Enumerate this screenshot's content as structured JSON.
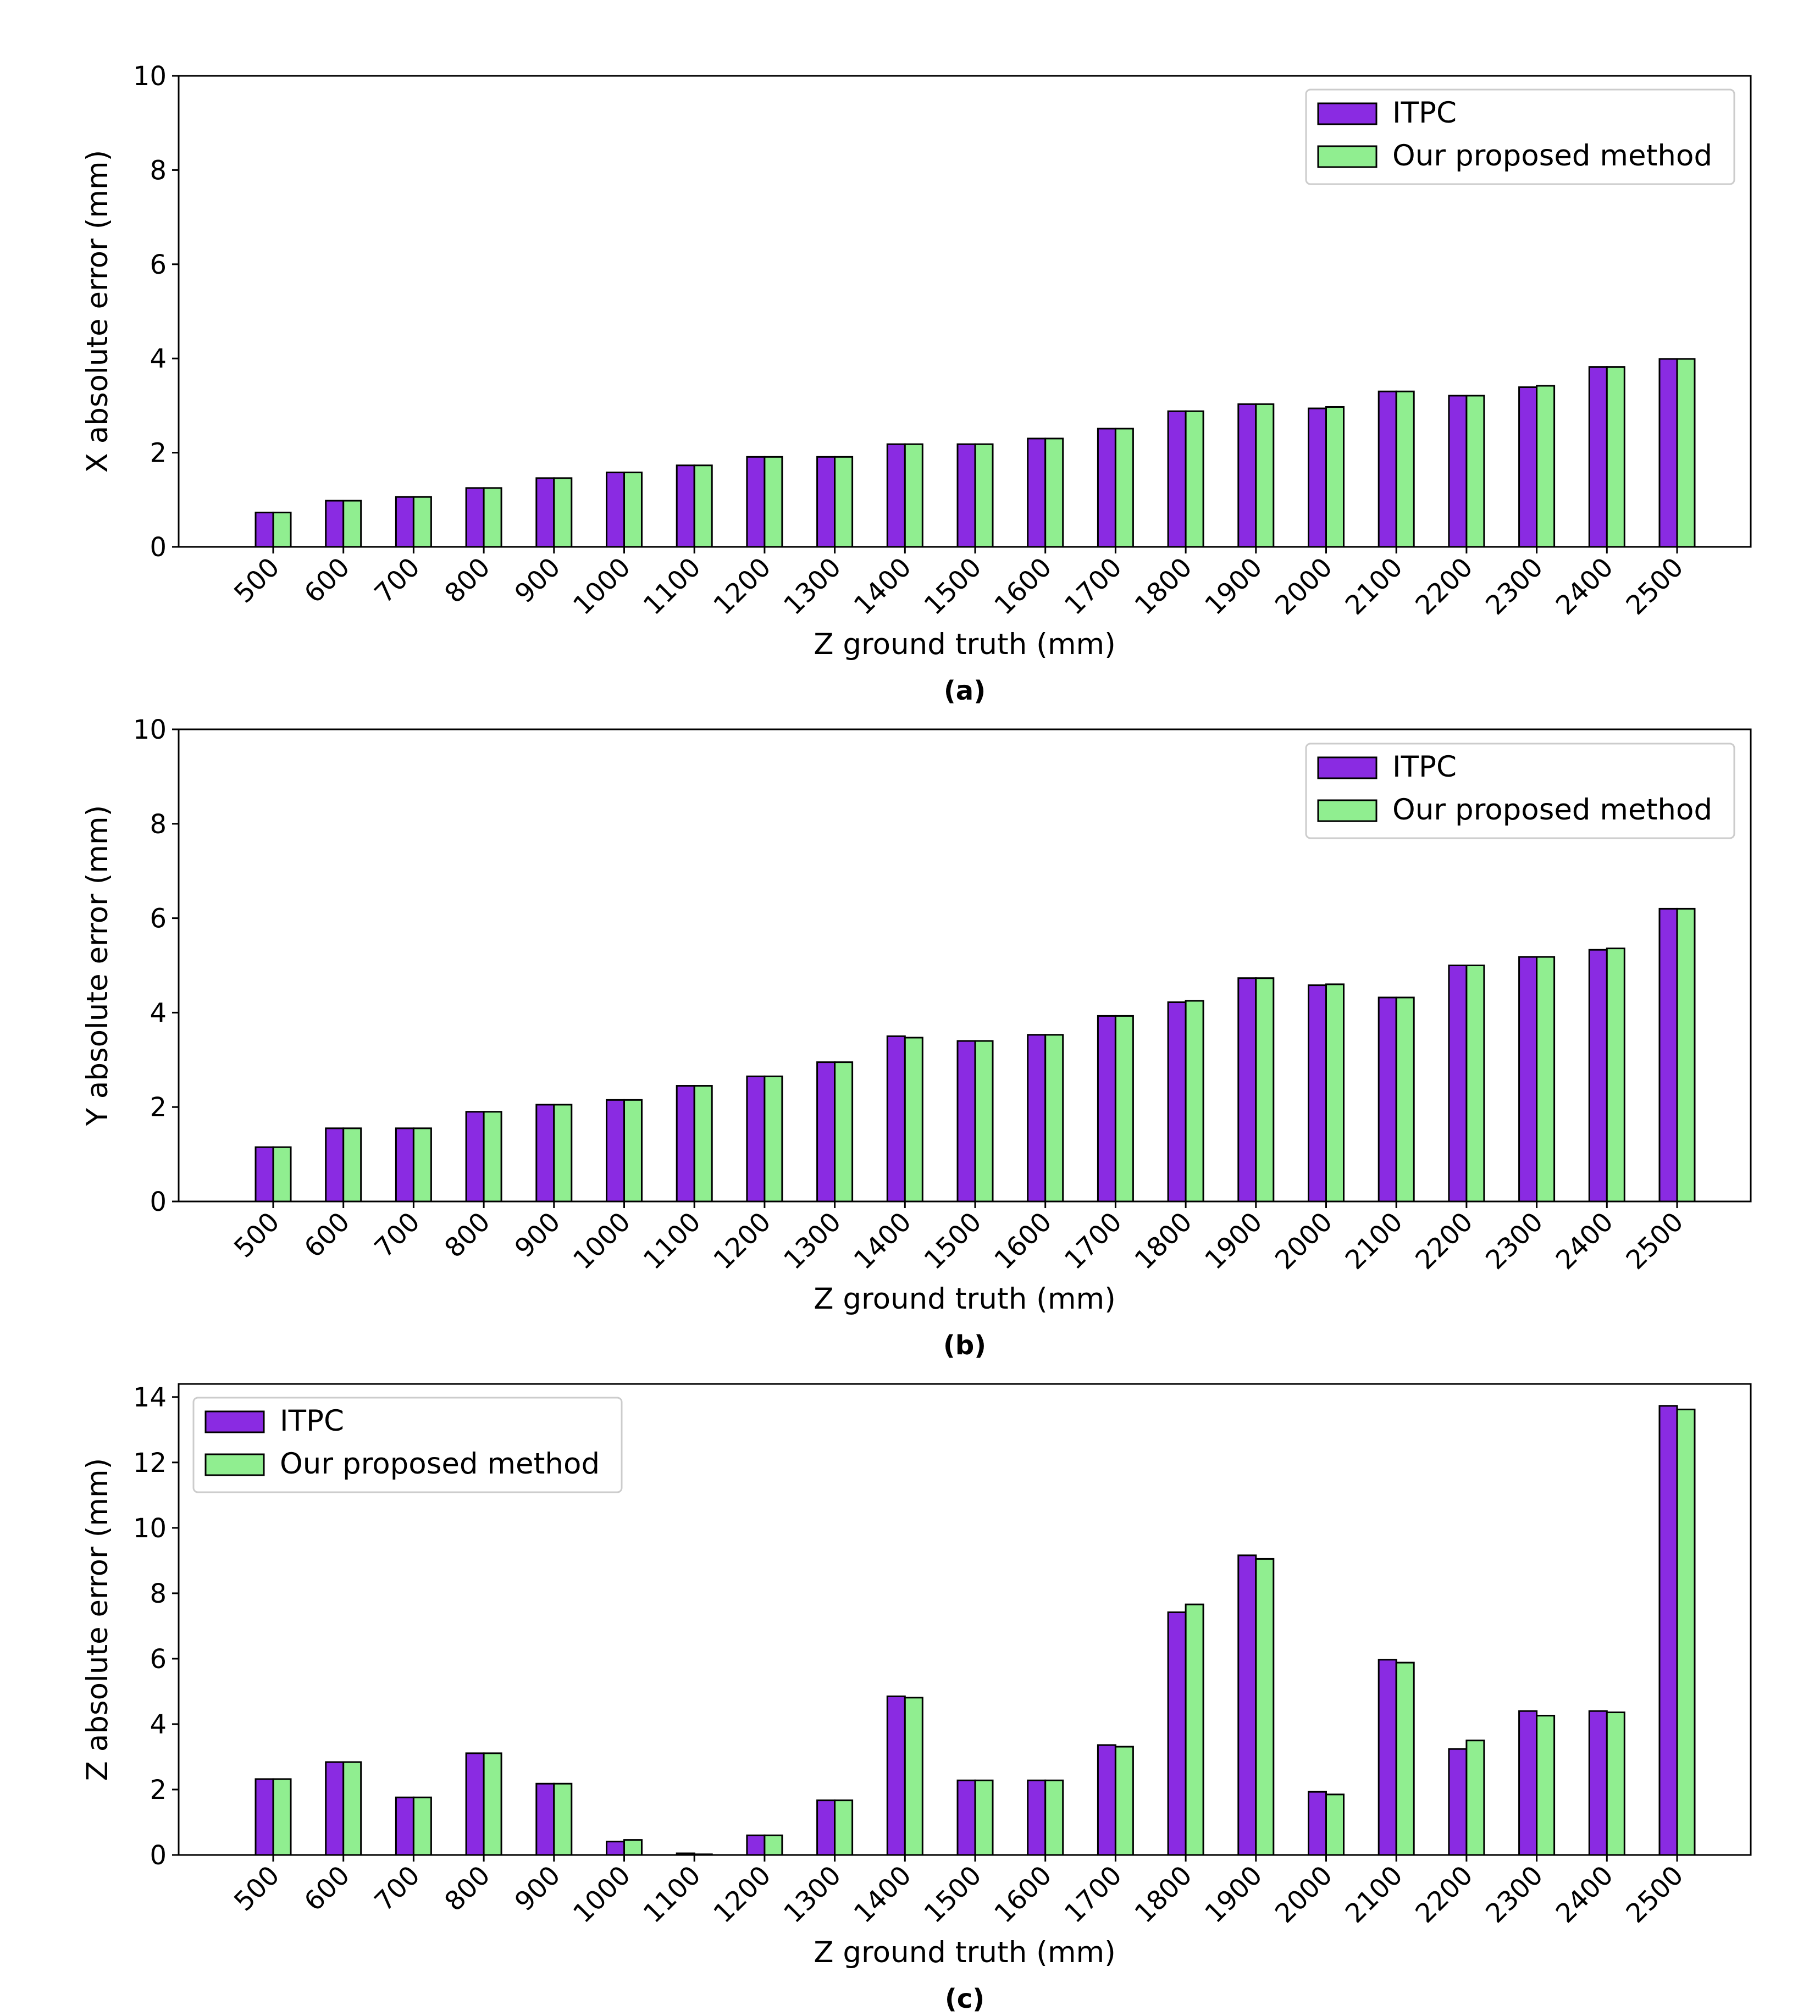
{
  "chart_data": [
    {
      "type": "bar",
      "caption": "(a)",
      "xlabel": "Z ground truth (mm)",
      "ylabel": "X absolute error (mm)",
      "ylim": [
        0,
        10
      ],
      "yticks": [
        0,
        2,
        4,
        6,
        8,
        10
      ],
      "legend_position": "top-right",
      "categories": [
        "500",
        "600",
        "700",
        "800",
        "900",
        "1000",
        "1100",
        "1200",
        "1300",
        "1400",
        "1500",
        "1600",
        "1700",
        "1800",
        "1900",
        "2000",
        "2100",
        "2200",
        "2300",
        "2400",
        "2500"
      ],
      "series": [
        {
          "name": "ITPC",
          "values": [
            0.73,
            0.98,
            1.06,
            1.25,
            1.46,
            1.58,
            1.73,
            1.91,
            1.91,
            2.18,
            2.18,
            2.3,
            2.51,
            2.88,
            3.03,
            2.94,
            3.3,
            3.21,
            3.39,
            3.82,
            3.99
          ]
        },
        {
          "name": "Our proposed method",
          "values": [
            0.73,
            0.98,
            1.06,
            1.25,
            1.46,
            1.58,
            1.73,
            1.91,
            1.91,
            2.18,
            2.18,
            2.3,
            2.51,
            2.88,
            3.03,
            2.97,
            3.3,
            3.21,
            3.42,
            3.82,
            3.99
          ]
        }
      ]
    },
    {
      "type": "bar",
      "caption": "(b)",
      "xlabel": "Z ground truth (mm)",
      "ylabel": "Y absolute error (mm)",
      "ylim": [
        0,
        10
      ],
      "yticks": [
        0,
        2,
        4,
        6,
        8,
        10
      ],
      "legend_position": "top-right",
      "categories": [
        "500",
        "600",
        "700",
        "800",
        "900",
        "1000",
        "1100",
        "1200",
        "1300",
        "1400",
        "1500",
        "1600",
        "1700",
        "1800",
        "1900",
        "2000",
        "2100",
        "2200",
        "2300",
        "2400",
        "2500"
      ],
      "series": [
        {
          "name": "ITPC",
          "values": [
            1.15,
            1.55,
            1.55,
            1.9,
            2.05,
            2.15,
            2.45,
            2.65,
            2.95,
            3.5,
            3.4,
            3.53,
            3.93,
            4.22,
            4.73,
            4.58,
            4.32,
            5.0,
            5.18,
            5.33,
            6.2
          ]
        },
        {
          "name": "Our proposed method",
          "values": [
            1.15,
            1.55,
            1.55,
            1.9,
            2.05,
            2.15,
            2.45,
            2.65,
            2.95,
            3.47,
            3.4,
            3.53,
            3.93,
            4.25,
            4.73,
            4.6,
            4.32,
            5.0,
            5.18,
            5.36,
            6.2
          ]
        }
      ]
    },
    {
      "type": "bar",
      "caption": "(c)",
      "xlabel": "Z ground truth (mm)",
      "ylabel": "Z absolute error (mm)",
      "ylim": [
        0,
        14.4
      ],
      "yticks": [
        0,
        2,
        4,
        6,
        8,
        10,
        12,
        14
      ],
      "legend_position": "top-left",
      "categories": [
        "500",
        "600",
        "700",
        "800",
        "900",
        "1000",
        "1100",
        "1200",
        "1300",
        "1400",
        "1500",
        "1600",
        "1700",
        "1800",
        "1900",
        "2000",
        "2100",
        "2200",
        "2300",
        "2400",
        "2500"
      ],
      "series": [
        {
          "name": "ITPC",
          "values": [
            2.32,
            2.84,
            1.76,
            3.11,
            2.18,
            0.41,
            0.05,
            0.6,
            1.67,
            4.85,
            2.28,
            2.28,
            3.36,
            7.42,
            9.16,
            1.93,
            5.97,
            3.24,
            4.4,
            4.4,
            13.73
          ]
        },
        {
          "name": "Our proposed method",
          "values": [
            2.32,
            2.84,
            1.76,
            3.11,
            2.18,
            0.46,
            0.02,
            0.6,
            1.67,
            4.81,
            2.28,
            2.28,
            3.31,
            7.66,
            9.05,
            1.85,
            5.88,
            3.5,
            4.26,
            4.36,
            13.62
          ]
        }
      ]
    }
  ],
  "colors": {
    "ITPC": "#8a2be2",
    "Our proposed method": "#90ee90",
    "edge": "#000000"
  }
}
